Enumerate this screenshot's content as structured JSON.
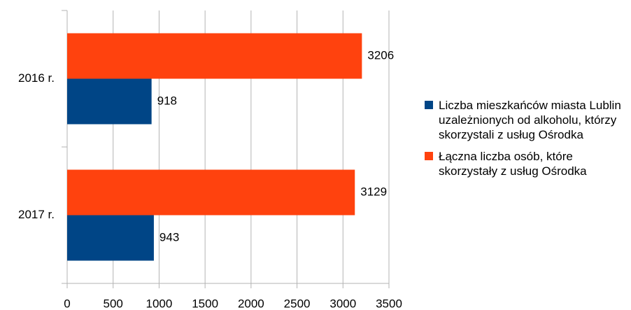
{
  "chart_data": {
    "type": "bar",
    "orientation": "horizontal",
    "categories": [
      "2016 r.",
      "2017 r."
    ],
    "series": [
      {
        "name": "Liczba mieszkańców miasta Lublin uzależnionych od alkoholu, którzy skorzystali z usług Ośrodka",
        "color": "#004586",
        "values": [
          918,
          943
        ]
      },
      {
        "name": "Łączna liczba osób, które skorzystały z usług Ośrodka",
        "color": "#ff420e",
        "values": [
          3206,
          3129
        ]
      }
    ],
    "xlim": [
      0,
      3500
    ],
    "xticks": [
      0,
      500,
      1000,
      1500,
      2000,
      2500,
      3000,
      3500
    ],
    "grid": true,
    "legend": "right"
  }
}
